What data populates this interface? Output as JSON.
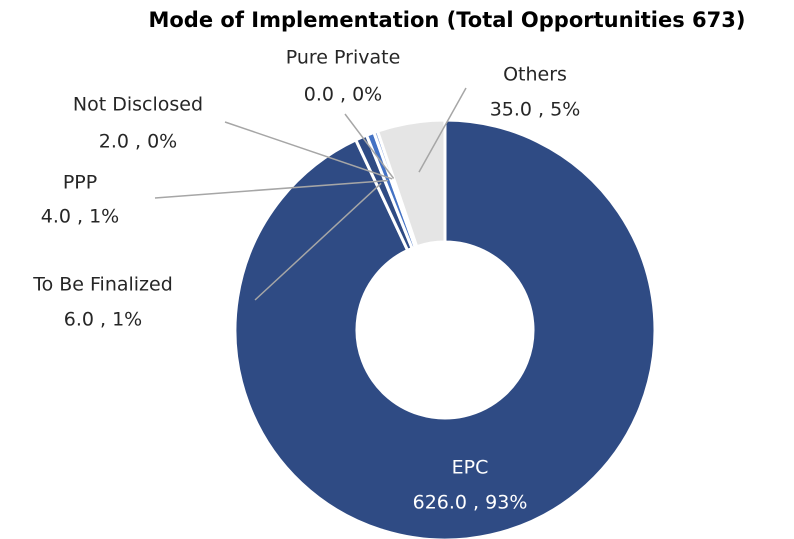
{
  "chart_data": {
    "type": "donut",
    "title": "Mode of Implementation (Total Opportunities 673)",
    "categories": [
      "EPC",
      "To Be Finalized",
      "PPP",
      "Not Disclosed",
      "Pure Private",
      "Others"
    ],
    "values": [
      626,
      6,
      4,
      2,
      0,
      35
    ],
    "value_labels": [
      "626.0 , 93%",
      "6.0 , 1%",
      "4.0 , 1%",
      "2.0 , 0%",
      "0.0 , 0%",
      "35.0 , 5%"
    ],
    "colors": [
      "#2f4b84",
      "#2f4b84",
      "#4472c4",
      "#8faadc",
      "#b4c7e7",
      "#e5e5e5"
    ]
  }
}
